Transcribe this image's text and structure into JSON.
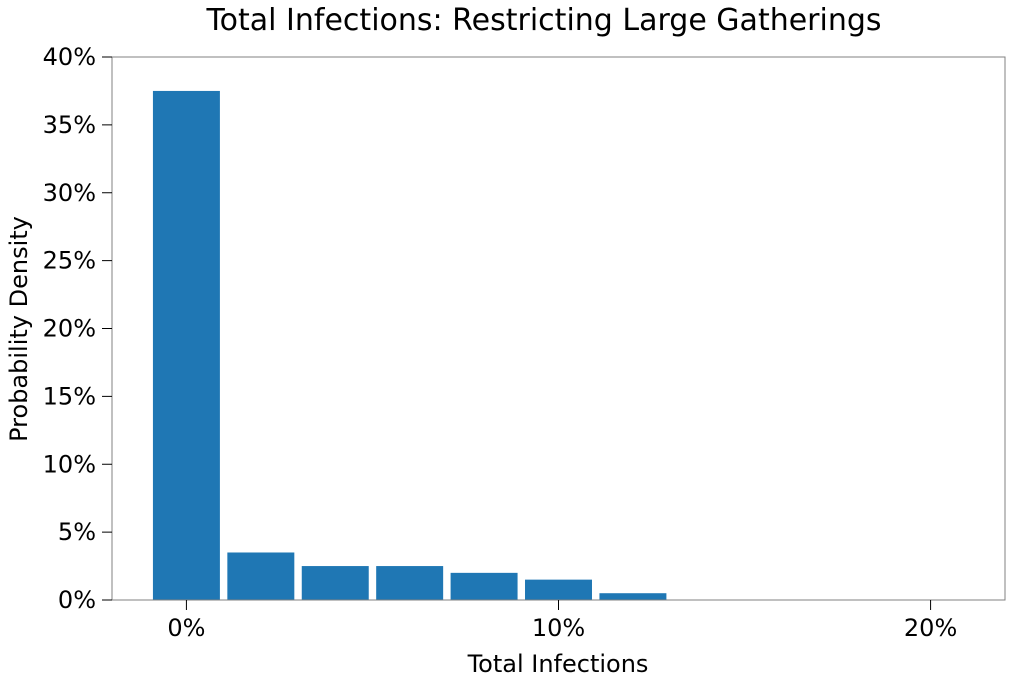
{
  "chart_data": {
    "type": "bar",
    "title": "Total Infections: Restricting Large Gatherings",
    "xlabel": "Total Infections",
    "ylabel": "Probability Density",
    "bar_color": "#1f77b4",
    "grid": false,
    "legend": "none",
    "x_bin_centers": [
      0,
      2,
      4,
      6,
      8,
      10,
      12
    ],
    "values": [
      37.5,
      3.5,
      2.5,
      2.5,
      2.0,
      1.5,
      0.5
    ],
    "bar_width": 1.8,
    "xlim": [
      -2,
      22
    ],
    "ylim": [
      0,
      40
    ],
    "x_ticks": [
      0,
      10,
      20
    ],
    "x_tick_labels": [
      "0%",
      "10%",
      "20%"
    ],
    "y_ticks": [
      0,
      5,
      10,
      15,
      20,
      25,
      30,
      35,
      40
    ],
    "y_tick_labels": [
      "0%",
      "5%",
      "10%",
      "15%",
      "20%",
      "25%",
      "30%",
      "35%",
      "40%"
    ]
  }
}
